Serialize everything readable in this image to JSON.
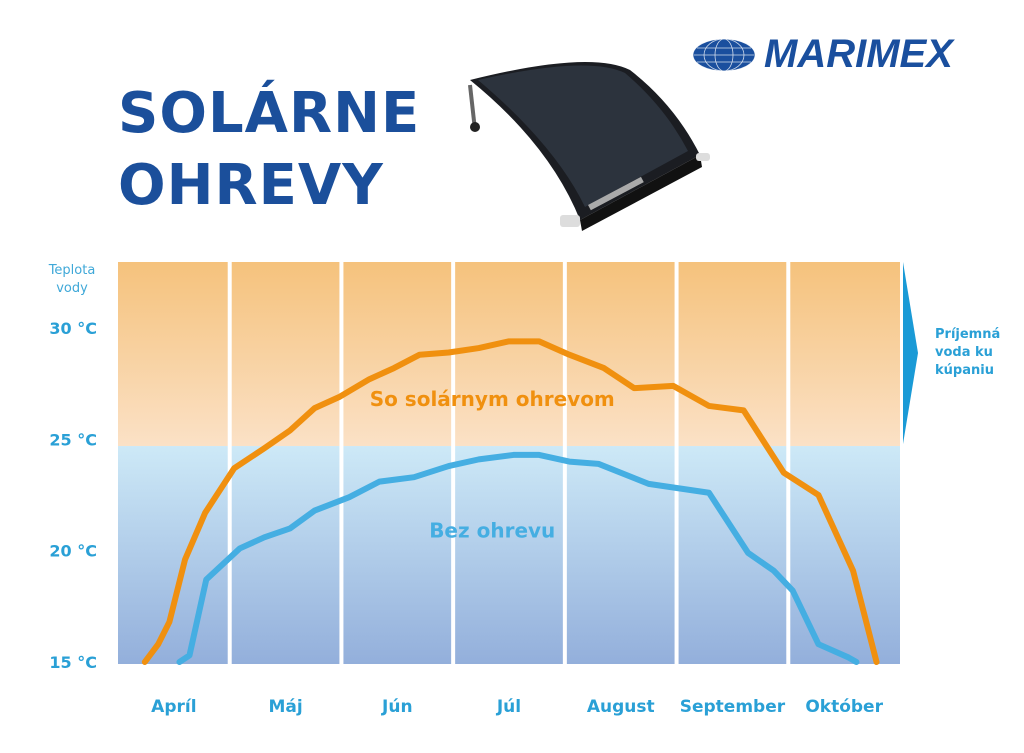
{
  "brand": {
    "name": "MARIMEX",
    "color": "#1a4f9e"
  },
  "title": {
    "line1": "SOLÁRNE",
    "line2": "OHREVY"
  },
  "note": {
    "line1": "Príjemná",
    "line2": "voda ku",
    "line3": "kúpaniu"
  },
  "chart_data": {
    "type": "line",
    "ylabel": [
      "Teplota",
      "vody"
    ],
    "ylim": [
      15,
      30
    ],
    "yticks": [
      {
        "value": 15,
        "label": "15 °C"
      },
      {
        "value": 20,
        "label": "20 °C"
      },
      {
        "value": 25,
        "label": "25 °C"
      },
      {
        "value": 30,
        "label": "30 °C"
      }
    ],
    "categories": [
      "Apríl",
      "Máj",
      "Jún",
      "Júl",
      "August",
      "September",
      "Október"
    ],
    "comfort_threshold": 24.7,
    "colors": {
      "solar": "#f0900f",
      "none": "#45aee2",
      "warm_band": "#f6c27e",
      "cool_band": "#9ab6dc",
      "text": "#2aa0d6"
    },
    "series": [
      {
        "name": "So solárnym ohrevom",
        "x": [
          0.24,
          0.36,
          0.46,
          0.6,
          0.78,
          1.04,
          1.31,
          1.54,
          1.76,
          1.98,
          2.25,
          2.47,
          2.7,
          2.96,
          3.23,
          3.5,
          3.77,
          4.04,
          4.35,
          4.62,
          4.97,
          5.29,
          5.6,
          5.96,
          6.27,
          6.58,
          6.79
        ],
        "y": [
          15.0,
          15.8,
          16.8,
          19.6,
          21.7,
          23.7,
          24.6,
          25.4,
          26.4,
          26.9,
          27.7,
          28.2,
          28.8,
          28.9,
          29.1,
          29.4,
          29.4,
          28.8,
          28.2,
          27.3,
          27.4,
          26.5,
          26.3,
          23.5,
          22.5,
          19.1,
          15.0
        ]
      },
      {
        "name": "Bez ohrevu",
        "x": [
          0.55,
          0.64,
          0.79,
          1.09,
          1.31,
          1.54,
          1.76,
          2.07,
          2.34,
          2.65,
          2.96,
          3.23,
          3.54,
          3.77,
          4.04,
          4.3,
          4.75,
          5.29,
          5.64,
          5.87,
          6.04,
          6.27,
          6.54,
          6.61
        ],
        "y": [
          15.0,
          15.3,
          18.7,
          20.1,
          20.6,
          21.0,
          21.8,
          22.4,
          23.1,
          23.3,
          23.8,
          24.1,
          24.3,
          24.3,
          24.0,
          23.9,
          23.0,
          22.6,
          19.9,
          19.1,
          18.2,
          15.8,
          15.2,
          15.0
        ]
      }
    ]
  }
}
